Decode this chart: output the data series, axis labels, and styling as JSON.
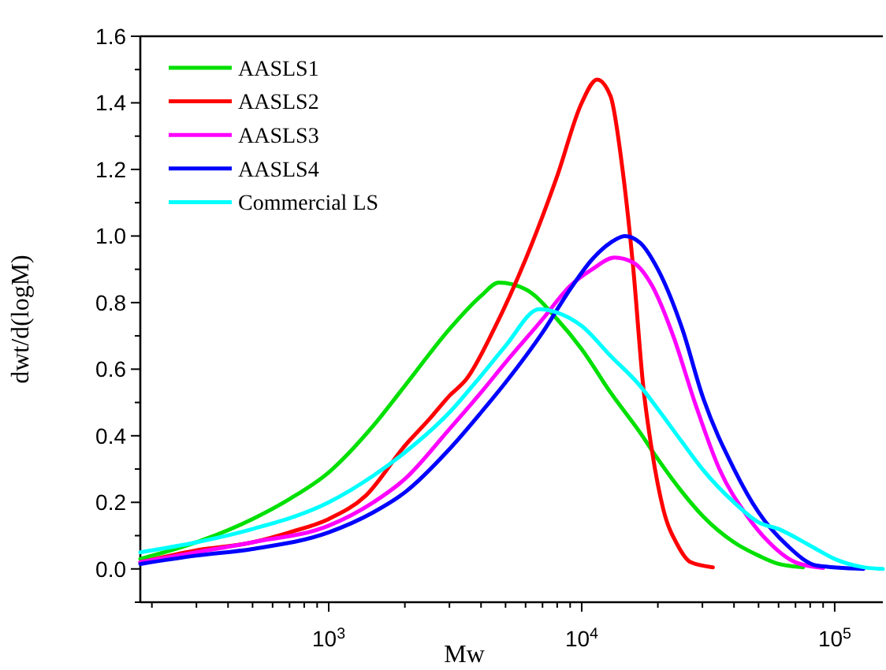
{
  "chart_data": {
    "type": "line",
    "xlabel": "Mw",
    "ylabel": "dwt/d(logM)",
    "log": "x",
    "xlim": [
      180,
      155000
    ],
    "ylim": [
      -0.1,
      1.6
    ],
    "xticks": [
      {
        "value": 200,
        "label": null
      },
      {
        "value": 300,
        "label": null
      },
      {
        "value": 400,
        "label": null
      },
      {
        "value": 500,
        "label": null
      },
      {
        "value": 600,
        "label": null
      },
      {
        "value": 700,
        "label": null
      },
      {
        "value": 800,
        "label": null
      },
      {
        "value": 900,
        "label": null
      },
      {
        "value": 1000,
        "label": "10$^{3}$"
      },
      {
        "value": 2000,
        "label": null
      },
      {
        "value": 3000,
        "label": null
      },
      {
        "value": 4000,
        "label": null
      },
      {
        "value": 5000,
        "label": null
      },
      {
        "value": 6000,
        "label": null
      },
      {
        "value": 7000,
        "label": null
      },
      {
        "value": 8000,
        "label": null
      },
      {
        "value": 9000,
        "label": null
      },
      {
        "value": 10000,
        "label": "10$^{4}$"
      },
      {
        "value": 20000,
        "label": null
      },
      {
        "value": 30000,
        "label": null
      },
      {
        "value": 40000,
        "label": null
      },
      {
        "value": 50000,
        "label": null
      },
      {
        "value": 60000,
        "label": null
      },
      {
        "value": 70000,
        "label": null
      },
      {
        "value": 80000,
        "label": null
      },
      {
        "value": 90000,
        "label": null
      },
      {
        "value": 100000,
        "label": "10$^{5}$"
      }
    ],
    "yticks": [
      {
        "value": -0.1,
        "label": null
      },
      {
        "value": 0,
        "label": "0.0"
      },
      {
        "value": 0.1,
        "label": null
      },
      {
        "value": 0.2,
        "label": "0.2"
      },
      {
        "value": 0.3,
        "label": null
      },
      {
        "value": 0.4,
        "label": "0.4"
      },
      {
        "value": 0.5,
        "label": null
      },
      {
        "value": 0.6,
        "label": "0.6"
      },
      {
        "value": 0.7,
        "label": null
      },
      {
        "value": 0.8,
        "label": "0.8"
      },
      {
        "value": 0.9,
        "label": null
      },
      {
        "value": 1.0,
        "label": "1.0"
      },
      {
        "value": 1.1,
        "label": null
      },
      {
        "value": 1.2,
        "label": "1.2"
      },
      {
        "value": 1.3,
        "label": null
      },
      {
        "value": 1.4,
        "label": "1.4"
      },
      {
        "value": 1.5,
        "label": null
      },
      {
        "value": 1.6,
        "label": "1.6"
      }
    ],
    "grid": false,
    "legend": "top left",
    "marker": "none",
    "line_style": "solid",
    "series": [
      {
        "name": "AASLS1",
        "color": "#00e000",
        "x": [
          180,
          300,
          500,
          700,
          1000,
          1500,
          2000,
          3000,
          4000,
          4700,
          6000,
          8000,
          10000,
          13000,
          17000,
          20000,
          25000,
          30000,
          40000,
          50000,
          60000,
          75000
        ],
        "values": [
          0.03,
          0.08,
          0.15,
          0.21,
          0.29,
          0.43,
          0.55,
          0.72,
          0.82,
          0.86,
          0.84,
          0.75,
          0.66,
          0.53,
          0.41,
          0.33,
          0.23,
          0.16,
          0.08,
          0.04,
          0.015,
          0.005
        ]
      },
      {
        "name": "AASLS2",
        "color": "#ff0000",
        "x": [
          180,
          300,
          500,
          700,
          1000,
          1400,
          2000,
          2500,
          3000,
          3500,
          4500,
          6000,
          8000,
          10000,
          11500,
          13000,
          14500,
          16000,
          17500,
          19000,
          21000,
          24000,
          27000,
          33000
        ],
        "values": [
          0.02,
          0.056,
          0.08,
          0.11,
          0.15,
          0.22,
          0.37,
          0.45,
          0.52,
          0.57,
          0.72,
          0.93,
          1.18,
          1.4,
          1.47,
          1.42,
          1.2,
          0.9,
          0.55,
          0.35,
          0.18,
          0.07,
          0.02,
          0.005
        ]
      },
      {
        "name": "AASLS3",
        "color": "#ff00ff",
        "x": [
          180,
          300,
          500,
          1000,
          1500,
          2000,
          3000,
          4000,
          5000,
          7000,
          9000,
          11000,
          13500,
          16000,
          19000,
          23000,
          28000,
          35000,
          45000,
          55000,
          70000,
          90000
        ],
        "values": [
          0.02,
          0.05,
          0.08,
          0.13,
          0.2,
          0.27,
          0.42,
          0.53,
          0.62,
          0.75,
          0.85,
          0.9,
          0.935,
          0.92,
          0.85,
          0.7,
          0.5,
          0.3,
          0.16,
          0.08,
          0.02,
          0.003
        ]
      },
      {
        "name": "AASLS4",
        "color": "#0000ff",
        "x": [
          180,
          300,
          500,
          1000,
          1500,
          2000,
          3000,
          4000,
          5000,
          7000,
          9000,
          11000,
          13000,
          14800,
          17000,
          20000,
          25000,
          30000,
          40000,
          50000,
          65000,
          85000,
          130000
        ],
        "values": [
          0.015,
          0.04,
          0.06,
          0.11,
          0.17,
          0.23,
          0.36,
          0.47,
          0.56,
          0.71,
          0.84,
          0.93,
          0.98,
          1.0,
          0.98,
          0.9,
          0.72,
          0.52,
          0.3,
          0.17,
          0.07,
          0.01,
          0.0
        ]
      },
      {
        "name": "Commercial LS",
        "color": "#00ffff",
        "x": [
          180,
          300,
          500,
          1000,
          1500,
          2000,
          3000,
          4000,
          5000,
          6800,
          8000,
          10000,
          13000,
          17000,
          20000,
          25000,
          30000,
          40000,
          50000,
          60000,
          80000,
          100000,
          130000,
          155000
        ],
        "values": [
          0.05,
          0.08,
          0.12,
          0.2,
          0.28,
          0.35,
          0.47,
          0.58,
          0.67,
          0.78,
          0.77,
          0.73,
          0.64,
          0.55,
          0.48,
          0.38,
          0.3,
          0.2,
          0.14,
          0.12,
          0.07,
          0.03,
          0.005,
          0.0
        ]
      }
    ]
  }
}
